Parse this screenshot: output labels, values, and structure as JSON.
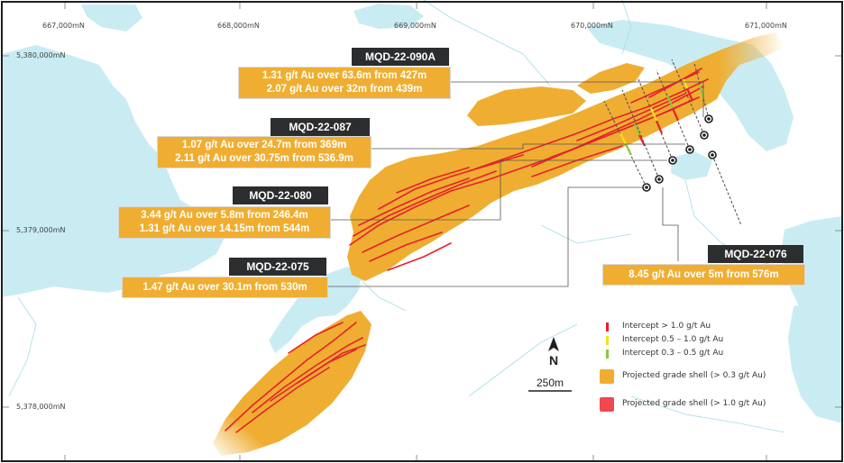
{
  "grid_labels": {
    "eastings": [
      "667,000mN",
      "668,000mN",
      "669,000mN",
      "670,000mN",
      "671,000mN"
    ],
    "northings": [
      "5,380,000mN",
      "5,379,000mN",
      "5,378,000mN"
    ]
  },
  "drill_holes": [
    {
      "name": "MQD-22-090A",
      "lines": [
        "1.31 g/t Au over 63.6m from 427m",
        "2.07 g/t Au over 32m from 439m"
      ]
    },
    {
      "name": "MQD-22-087",
      "lines": [
        "1.07 g/t Au over 24.7m from 369m",
        "2.11 g/t Au over 30.75m from 536.9m"
      ]
    },
    {
      "name": "MQD-22-080",
      "lines": [
        "3.44 g/t Au over 5.8m from 246.4m",
        "1.31 g/t Au over 14.15m from 544m"
      ]
    },
    {
      "name": "MQD-22-075",
      "lines": [
        "1.47 g/t Au over 30.1m from 530m"
      ]
    },
    {
      "name": "MQD-22-076",
      "lines": [
        "8.45 g/t Au over 5m from 576m"
      ]
    }
  ],
  "north_arrow": {
    "label": "N",
    "scale": "250m"
  },
  "legend": [
    {
      "label": "Intercept > 1.0 g/t Au",
      "color": "#e8202a",
      "symbol": "intercept"
    },
    {
      "label": "Intercept 0.5 – 1.0 g/t Au",
      "color": "#f2e31b",
      "symbol": "intercept"
    },
    {
      "label": "Intercept 0.3 – 0.5 g/t Au",
      "color": "#8cc63f",
      "symbol": "intercept"
    },
    {
      "label": "Projected grade shell (> 0.3 g/t Au)",
      "color": "#efae32",
      "symbol": "shell"
    },
    {
      "label": "Projected grade shell (> 1.0 g/t Au)",
      "color": "#f0484e",
      "symbol": "shell"
    }
  ],
  "colors": {
    "water": "#c9ecf3",
    "shell": "#efae32",
    "high_grade": "#e8202a",
    "label_dark": "#2b2d2f"
  }
}
